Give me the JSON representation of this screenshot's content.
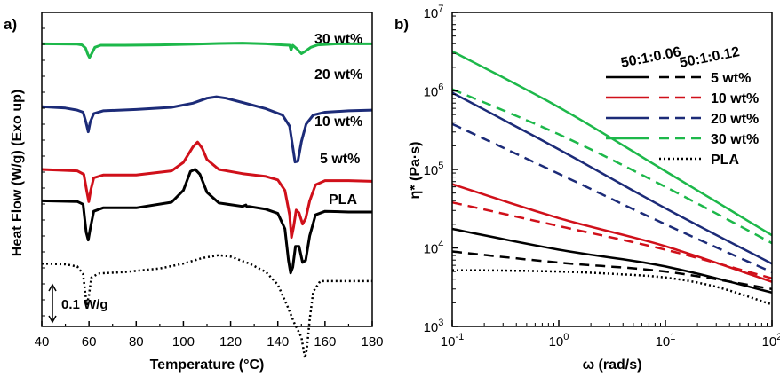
{
  "chart_data": [
    {
      "panel": "a)",
      "type": "line",
      "xlabel": "Temperature (°C)",
      "ylabel": "Heat Flow (W/g) (Exo up)",
      "xlim": [
        40,
        180
      ],
      "xticks": [
        "40",
        "60",
        "80",
        "100",
        "120",
        "140",
        "160",
        "180"
      ],
      "scale_bar_label": "0.1 W/g",
      "grid": false,
      "series": [
        {
          "name": "30 wt%",
          "color": "#1db84a",
          "style": "solid",
          "offset": 0.9,
          "points": [
            [
              40,
              0.0
            ],
            [
              55,
              -0.005
            ],
            [
              57,
              -0.015
            ],
            [
              58.5,
              -0.06
            ],
            [
              59.5,
              -0.15
            ],
            [
              60.2,
              -0.195
            ],
            [
              61,
              -0.15
            ],
            [
              62.5,
              -0.05
            ],
            [
              65,
              -0.02
            ],
            [
              75,
              -0.02
            ],
            [
              90,
              -0.015
            ],
            [
              105,
              -0.005
            ],
            [
              115,
              0.005
            ],
            [
              125,
              0.01
            ],
            [
              135,
              0.0
            ],
            [
              142,
              -0.015
            ],
            [
              145,
              -0.02
            ],
            [
              145.6,
              -0.09
            ],
            [
              146.3,
              -0.02
            ],
            [
              148,
              -0.07
            ],
            [
              150,
              -0.14
            ],
            [
              151.5,
              -0.11
            ],
            [
              154,
              -0.05
            ],
            [
              157,
              -0.015
            ],
            [
              165,
              0.0
            ],
            [
              180,
              0.0
            ]
          ]
        },
        {
          "name": "20 wt%",
          "color": "#1c2b78",
          "style": "solid",
          "offset": 0.7,
          "points": [
            [
              40,
              0.0
            ],
            [
              50,
              -0.02
            ],
            [
              55,
              -0.05
            ],
            [
              57.5,
              -0.08
            ],
            [
              58.7,
              -0.22
            ],
            [
              59.7,
              -0.36
            ],
            [
              60.5,
              -0.22
            ],
            [
              62,
              -0.1
            ],
            [
              66,
              -0.06
            ],
            [
              80,
              -0.04
            ],
            [
              95,
              -0.01
            ],
            [
              104,
              0.05
            ],
            [
              110,
              0.12
            ],
            [
              114,
              0.14
            ],
            [
              118,
              0.12
            ],
            [
              125,
              0.06
            ],
            [
              135,
              -0.03
            ],
            [
              142,
              -0.12
            ],
            [
              145,
              -0.28
            ],
            [
              147.3,
              -0.79
            ],
            [
              148.5,
              -0.78
            ],
            [
              150,
              -0.5
            ],
            [
              152,
              -0.25
            ],
            [
              155,
              -0.12
            ],
            [
              160,
              -0.08
            ],
            [
              170,
              -0.06
            ],
            [
              180,
              -0.05
            ]
          ]
        },
        {
          "name": "10 wt%",
          "color": "#d0101a",
          "style": "solid",
          "offset": 0.5,
          "points": [
            [
              40,
              0.0
            ],
            [
              55,
              -0.02
            ],
            [
              57.8,
              -0.07
            ],
            [
              59,
              -0.3
            ],
            [
              59.9,
              -0.46
            ],
            [
              60.7,
              -0.3
            ],
            [
              62,
              -0.12
            ],
            [
              66,
              -0.08
            ],
            [
              80,
              -0.08
            ],
            [
              95,
              -0.02
            ],
            [
              100,
              0.1
            ],
            [
              104,
              0.32
            ],
            [
              106,
              0.39
            ],
            [
              108,
              0.3
            ],
            [
              110,
              0.14
            ],
            [
              115,
              0.0
            ],
            [
              125,
              -0.06
            ],
            [
              135,
              -0.1
            ],
            [
              140,
              -0.15
            ],
            [
              143,
              -0.3
            ],
            [
              145,
              -0.65
            ],
            [
              145.8,
              -0.97
            ],
            [
              146.7,
              -0.82
            ],
            [
              147.8,
              -0.58
            ],
            [
              149,
              -0.62
            ],
            [
              150.5,
              -0.78
            ],
            [
              151.8,
              -0.7
            ],
            [
              153.5,
              -0.45
            ],
            [
              156,
              -0.22
            ],
            [
              160,
              -0.16
            ],
            [
              170,
              -0.16
            ],
            [
              180,
              -0.17
            ]
          ]
        },
        {
          "name": "5 wt%",
          "color": "#000000",
          "style": "solid",
          "offset": 0.4,
          "points": [
            [
              40,
              0.0
            ],
            [
              55,
              -0.01
            ],
            [
              57.5,
              -0.05
            ],
            [
              58.8,
              -0.45
            ],
            [
              59.7,
              -0.56
            ],
            [
              60.5,
              -0.4
            ],
            [
              62,
              -0.15
            ],
            [
              66,
              -0.1
            ],
            [
              80,
              -0.1
            ],
            [
              95,
              -0.02
            ],
            [
              100,
              0.15
            ],
            [
              103,
              0.42
            ],
            [
              105,
              0.45
            ],
            [
              107,
              0.38
            ],
            [
              110,
              0.12
            ],
            [
              115,
              -0.03
            ],
            [
              125,
              -0.08
            ],
            [
              126.5,
              -0.06
            ],
            [
              127,
              -0.09
            ],
            [
              127.6,
              -0.08
            ],
            [
              135,
              -0.12
            ],
            [
              140,
              -0.18
            ],
            [
              143,
              -0.4
            ],
            [
              144.5,
              -0.85
            ],
            [
              145.4,
              -1.03
            ],
            [
              146.3,
              -0.95
            ],
            [
              147.5,
              -0.65
            ],
            [
              149,
              -0.65
            ],
            [
              150.5,
              -0.88
            ],
            [
              151.8,
              -0.85
            ],
            [
              153.5,
              -0.5
            ],
            [
              156,
              -0.2
            ],
            [
              160,
              -0.15
            ],
            [
              170,
              -0.16
            ],
            [
              180,
              -0.16
            ]
          ]
        },
        {
          "name": "PLA",
          "color": "#000000",
          "style": "dotted",
          "offset": 0.2,
          "points": [
            [
              40,
              0.0
            ],
            [
              50,
              -0.01
            ],
            [
              55,
              -0.04
            ],
            [
              57.5,
              -0.15
            ],
            [
              58.5,
              -0.45
            ],
            [
              59.2,
              -0.58
            ],
            [
              60,
              -0.45
            ],
            [
              61,
              -0.2
            ],
            [
              64,
              -0.14
            ],
            [
              75,
              -0.12
            ],
            [
              90,
              -0.07
            ],
            [
              100,
              0.0
            ],
            [
              108,
              0.08
            ],
            [
              115,
              0.12
            ],
            [
              120,
              0.1
            ],
            [
              128,
              0.0
            ],
            [
              135,
              -0.12
            ],
            [
              140,
              -0.3
            ],
            [
              144,
              -0.6
            ],
            [
              147,
              -0.85
            ],
            [
              150,
              -1.05
            ],
            [
              151.5,
              -1.35
            ],
            [
              152.3,
              -1.22
            ],
            [
              153.5,
              -0.8
            ],
            [
              155,
              -0.4
            ],
            [
              158,
              -0.25
            ],
            [
              165,
              -0.25
            ],
            [
              180,
              -0.25
            ]
          ]
        }
      ]
    },
    {
      "panel": "b)",
      "type": "line",
      "log_x": true,
      "log_y": true,
      "xlabel": "ω (rad/s)",
      "ylabel": "η* (Pa·s)",
      "xlim": [
        0.1,
        100
      ],
      "ylim": [
        1000,
        10000000
      ],
      "x_tick_labels": [
        {
          "base": "10",
          "exp": "-1"
        },
        {
          "base": "10",
          "exp": "0"
        },
        {
          "base": "10",
          "exp": "1"
        },
        {
          "base": "10",
          "exp": "2"
        }
      ],
      "y_tick_labels": [
        {
          "base": "10",
          "exp": "3"
        },
        {
          "base": "10",
          "exp": "4"
        },
        {
          "base": "10",
          "exp": "5"
        },
        {
          "base": "10",
          "exp": "6"
        },
        {
          "base": "10",
          "exp": "7"
        }
      ],
      "legend_headers": [
        "50:1:0.06",
        "50:1:0.12"
      ],
      "legend_placement": "top-right",
      "grid": false,
      "series": [
        {
          "name": "5 wt%",
          "group": "50:1:0.06",
          "color": "#000000",
          "style": "solid",
          "x": [
            0.1,
            1,
            10,
            100
          ],
          "y": [
            17500,
            9500,
            5800,
            2700
          ]
        },
        {
          "name": "5 wt%",
          "group": "50:1:0.12",
          "color": "#000000",
          "style": "dashed",
          "x": [
            0.1,
            1,
            10,
            100
          ],
          "y": [
            9000,
            6500,
            5000,
            3000
          ]
        },
        {
          "name": "10 wt%",
          "group": "50:1:0.06",
          "color": "#d0101a",
          "style": "solid",
          "x": [
            0.1,
            1,
            10,
            100
          ],
          "y": [
            65000,
            24000,
            10500,
            3700
          ]
        },
        {
          "name": "10 wt%",
          "group": "50:1:0.12",
          "color": "#d0101a",
          "style": "dashed",
          "x": [
            0.1,
            1,
            10,
            100
          ],
          "y": [
            38000,
            19000,
            9500,
            4100
          ]
        },
        {
          "name": "20 wt%",
          "group": "50:1:0.06",
          "color": "#1c2b78",
          "style": "solid",
          "x": [
            0.1,
            1,
            10,
            100
          ],
          "y": [
            950000,
            180000,
            32000,
            6300
          ]
        },
        {
          "name": "20 wt%",
          "group": "50:1:0.12",
          "color": "#1c2b78",
          "style": "dashed",
          "x": [
            0.1,
            1,
            10,
            100
          ],
          "y": [
            380000,
            88000,
            20000,
            4900
          ]
        },
        {
          "name": "30 wt%",
          "group": "50:1:0.06",
          "color": "#1db84a",
          "style": "solid",
          "x": [
            0.1,
            1,
            10,
            100
          ],
          "y": [
            3200000,
            620000,
            95000,
            14500
          ]
        },
        {
          "name": "30 wt%",
          "group": "50:1:0.12",
          "color": "#1db84a",
          "style": "dashed",
          "x": [
            0.1,
            1,
            10,
            100
          ],
          "y": [
            1050000,
            280000,
            60000,
            11500
          ]
        },
        {
          "name": "PLA",
          "group": "",
          "color": "#000000",
          "style": "dotted",
          "x": [
            0.1,
            0.3,
            1,
            3,
            10,
            30,
            100
          ],
          "y": [
            5200,
            5150,
            5000,
            4700,
            4200,
            3200,
            1900
          ]
        }
      ]
    }
  ]
}
